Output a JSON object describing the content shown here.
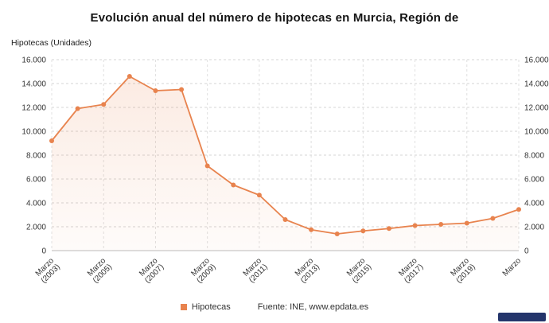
{
  "title": "Evolución anual del número de hipotecas en Murcia, Región de",
  "y_axis_title": "Hipotecas (Unidades)",
  "legend": {
    "series_label": "Hipotecas",
    "source": "Fuente: INE, www.epdata.es"
  },
  "colors": {
    "series": "#e8834e",
    "grid": "#d4d4d4",
    "vgrid": "#e0e0e0",
    "axis_line": "#bbbbbb",
    "axis_text": "#333333",
    "logo_bg": "#24356b"
  },
  "chart_data": {
    "type": "line",
    "title": "Evolución anual del número de hipotecas en Murcia, Región de",
    "ylabel": "Hipotecas (Unidades)",
    "xlabel": "",
    "grid": true,
    "legend_position": "bottom",
    "ylim": [
      0,
      16000
    ],
    "y_tick_step": 2000,
    "y_tick_labels": [
      "0",
      "2.000",
      "4.000",
      "6.000",
      "8.000",
      "10.000",
      "12.000",
      "14.000",
      "16.000"
    ],
    "x": [
      "Marzo 2003",
      "Marzo 2004",
      "Marzo 2005",
      "Marzo 2006",
      "Marzo 2007",
      "Marzo 2008",
      "Marzo 2009",
      "Marzo 2010",
      "Marzo 2011",
      "Marzo 2012",
      "Marzo 2013",
      "Marzo 2014",
      "Marzo 2015",
      "Marzo 2016",
      "Marzo 2017",
      "Marzo 2018",
      "Marzo 2019",
      "Marzo 2020",
      "Marzo 2021"
    ],
    "values": [
      9200,
      11900,
      12250,
      14600,
      13400,
      13500,
      7100,
      5500,
      4650,
      2600,
      1750,
      1400,
      1650,
      1850,
      2100,
      2200,
      2300,
      2700,
      3450
    ],
    "series_name": "Hipotecas",
    "x_ticks": [
      {
        "index": 0,
        "line1": "Marzo",
        "line2": "(2003)"
      },
      {
        "index": 2,
        "line1": "Marzo",
        "line2": "(2005)"
      },
      {
        "index": 4,
        "line1": "Marzo",
        "line2": "(2007)"
      },
      {
        "index": 6,
        "line1": "Marzo",
        "line2": "(2009)"
      },
      {
        "index": 8,
        "line1": "Marzo",
        "line2": "(2011)"
      },
      {
        "index": 10,
        "line1": "Marzo",
        "line2": "(2013)"
      },
      {
        "index": 12,
        "line1": "Marzo",
        "line2": "(2015)"
      },
      {
        "index": 14,
        "line1": "Marzo",
        "line2": "(2017)"
      },
      {
        "index": 16,
        "line1": "Marzo",
        "line2": "(2019)"
      },
      {
        "index": 18,
        "line1": "Marzo",
        "line2": ""
      }
    ]
  }
}
